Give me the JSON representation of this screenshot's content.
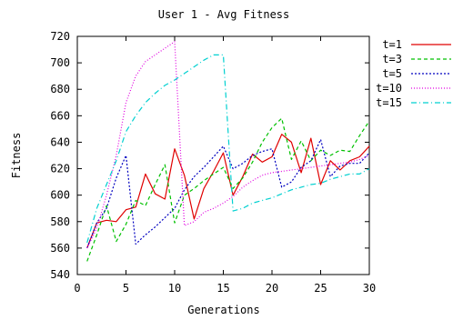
{
  "chart_data": {
    "type": "line",
    "title": "User 1 - Avg Fitness",
    "xlabel": "Generations",
    "ylabel": "Fitness",
    "xlim": [
      0,
      30
    ],
    "ylim": [
      540,
      720
    ],
    "xticks": [
      0,
      5,
      10,
      15,
      20,
      25,
      30
    ],
    "yticks": [
      540,
      560,
      580,
      600,
      620,
      640,
      660,
      680,
      700,
      720
    ],
    "grid": false,
    "legend_position": "right",
    "series": [
      {
        "name": "t=1",
        "color": "#e00000",
        "dash": "solid",
        "x": [
          1,
          2,
          3,
          4,
          5,
          6,
          7,
          8,
          9,
          10,
          11,
          12,
          13,
          14,
          15,
          16,
          17,
          18,
          19,
          20,
          21,
          22,
          23,
          24,
          25,
          26,
          27,
          28,
          29,
          30
        ],
        "values": [
          560,
          579,
          581,
          580,
          589,
          591,
          616,
          601,
          597,
          635,
          615,
          582,
          605,
          618,
          632,
          600,
          614,
          631,
          625,
          629,
          646,
          640,
          617,
          643,
          608,
          626,
          619,
          626,
          629,
          637
        ]
      },
      {
        "name": "t=3",
        "color": "#00c000",
        "dash": "4,3",
        "x": [
          1,
          2,
          3,
          4,
          5,
          6,
          7,
          8,
          9,
          10,
          11,
          12,
          13,
          14,
          15,
          16,
          17,
          18,
          19,
          20,
          21,
          22,
          23,
          24,
          25,
          26,
          27,
          28,
          29,
          30
        ],
        "values": [
          550,
          570,
          592,
          565,
          578,
          596,
          592,
          608,
          623,
          579,
          600,
          605,
          611,
          616,
          621,
          605,
          613,
          625,
          640,
          651,
          658,
          627,
          641,
          626,
          634,
          630,
          634,
          633,
          645,
          656
        ]
      },
      {
        "name": "t=5",
        "color": "#0000c0",
        "dash": "2,2",
        "x": [
          1,
          2,
          3,
          4,
          5,
          6,
          7,
          8,
          9,
          10,
          11,
          12,
          13,
          14,
          15,
          16,
          17,
          18,
          19,
          20,
          21,
          22,
          23,
          24,
          25,
          26,
          27,
          28,
          29,
          30
        ],
        "values": [
          560,
          579,
          590,
          613,
          630,
          563,
          570,
          576,
          583,
          590,
          604,
          614,
          621,
          629,
          637,
          620,
          624,
          630,
          633,
          635,
          606,
          610,
          621,
          626,
          642,
          614,
          622,
          624,
          624,
          632
        ]
      },
      {
        "name": "t=10",
        "color": "#e000e0",
        "dash": "1,2",
        "x": [
          1,
          2,
          3,
          4,
          5,
          6,
          7,
          8,
          9,
          10,
          11,
          12,
          13,
          14,
          15,
          16,
          17,
          18,
          19,
          20,
          21,
          22,
          23,
          24,
          25,
          26,
          27,
          28,
          29,
          30
        ],
        "values": [
          560,
          575,
          600,
          630,
          670,
          690,
          701,
          706,
          711,
          716,
          577,
          580,
          587,
          590,
          594,
          599,
          606,
          611,
          615,
          617,
          618,
          619,
          620,
          621,
          622,
          623,
          624,
          625,
          627,
          630
        ]
      },
      {
        "name": "t=15",
        "color": "#00d0d0",
        "dash": "6,3,1,3",
        "x": [
          1,
          2,
          3,
          4,
          5,
          6,
          7,
          8,
          9,
          10,
          11,
          12,
          13,
          14,
          15,
          16,
          17,
          18,
          19,
          20,
          21,
          22,
          23,
          24,
          25,
          26,
          27,
          28,
          29,
          30
        ],
        "values": [
          564,
          590,
          608,
          626,
          648,
          660,
          670,
          677,
          683,
          687,
          692,
          697,
          702,
          706,
          706,
          588,
          590,
          594,
          596,
          598,
          601,
          604,
          606,
          608,
          609,
          612,
          614,
          616,
          616,
          620
        ]
      }
    ]
  }
}
